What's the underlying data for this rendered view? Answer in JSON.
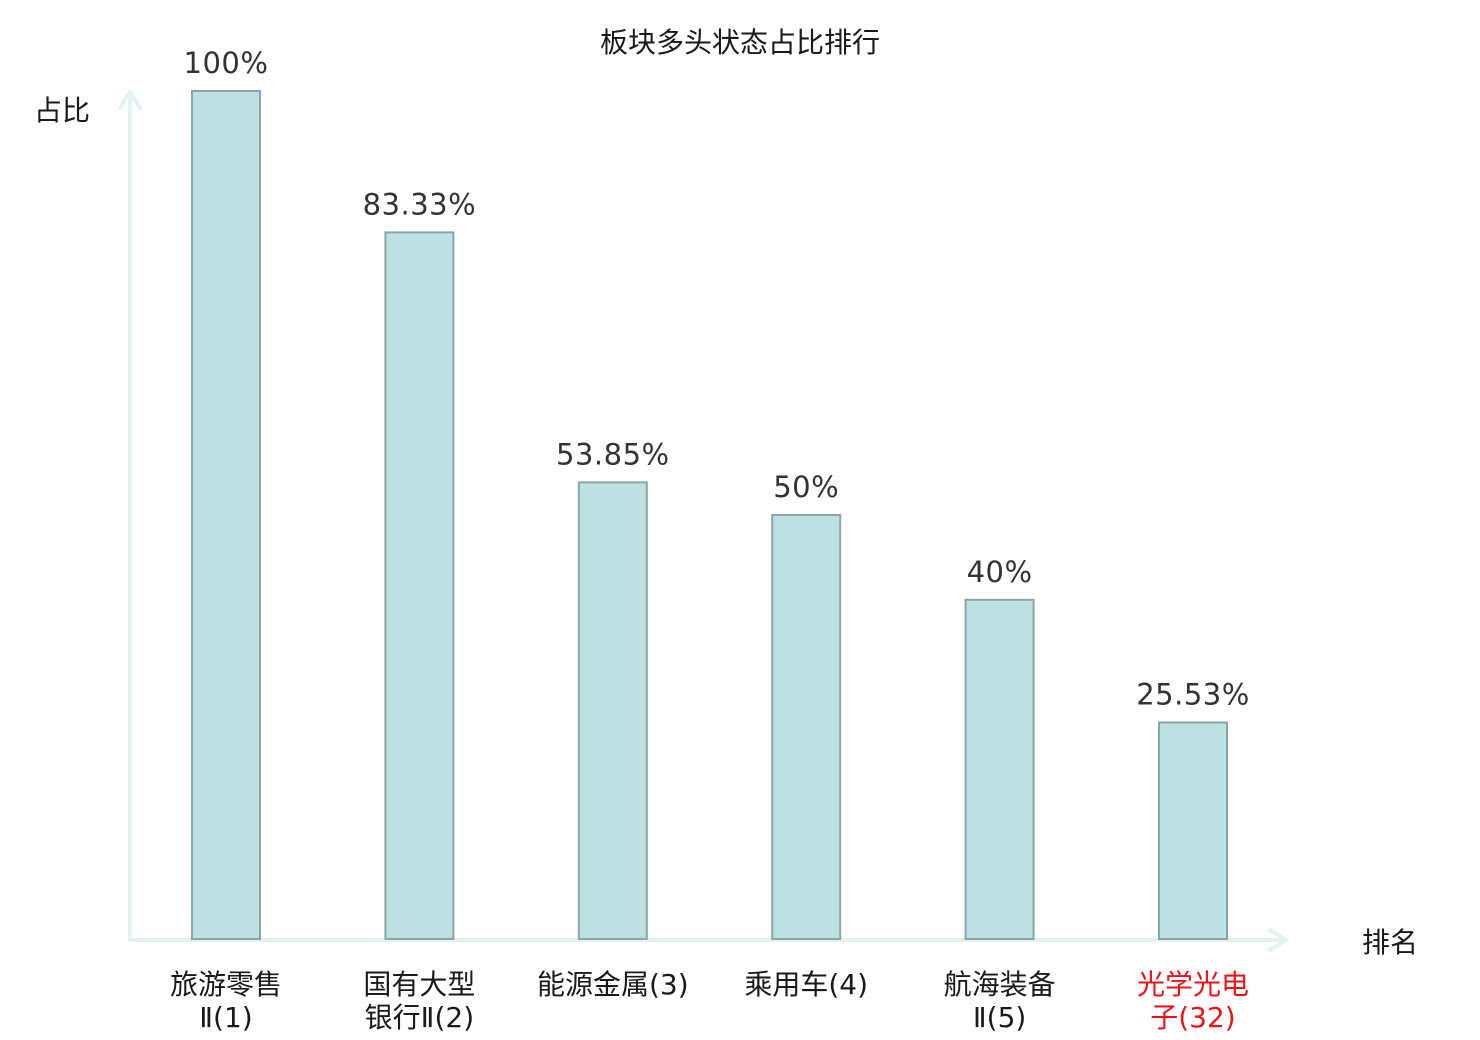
{
  "chart_data": {
    "type": "bar",
    "title": "板块多头状态占比排行",
    "ylabel": "占比",
    "xlabel": "排名",
    "ylim": [
      0,
      100
    ],
    "grid": false,
    "categories": [
      [
        "旅游零售",
        "Ⅱ(1)"
      ],
      [
        "国有大型",
        "银行Ⅱ(2)"
      ],
      [
        "能源金属(3)"
      ],
      [
        "乘用车(4)"
      ],
      [
        "航海装备",
        "Ⅱ(5)"
      ],
      [
        "光学光电",
        "子(32)"
      ]
    ],
    "values": [
      100,
      83.33,
      53.85,
      50,
      40,
      25.53
    ],
    "value_labels": [
      "100%",
      "83.33%",
      "53.85%",
      "50%",
      "40%",
      "25.53%"
    ],
    "highlight_index": 5,
    "colors": {
      "bar_fill": "#bde0e3",
      "bar_stroke": "#88a6a9",
      "axis": "#e2f3f2",
      "highlight_text": "#e8141a",
      "text": "#1a1a1a"
    }
  }
}
